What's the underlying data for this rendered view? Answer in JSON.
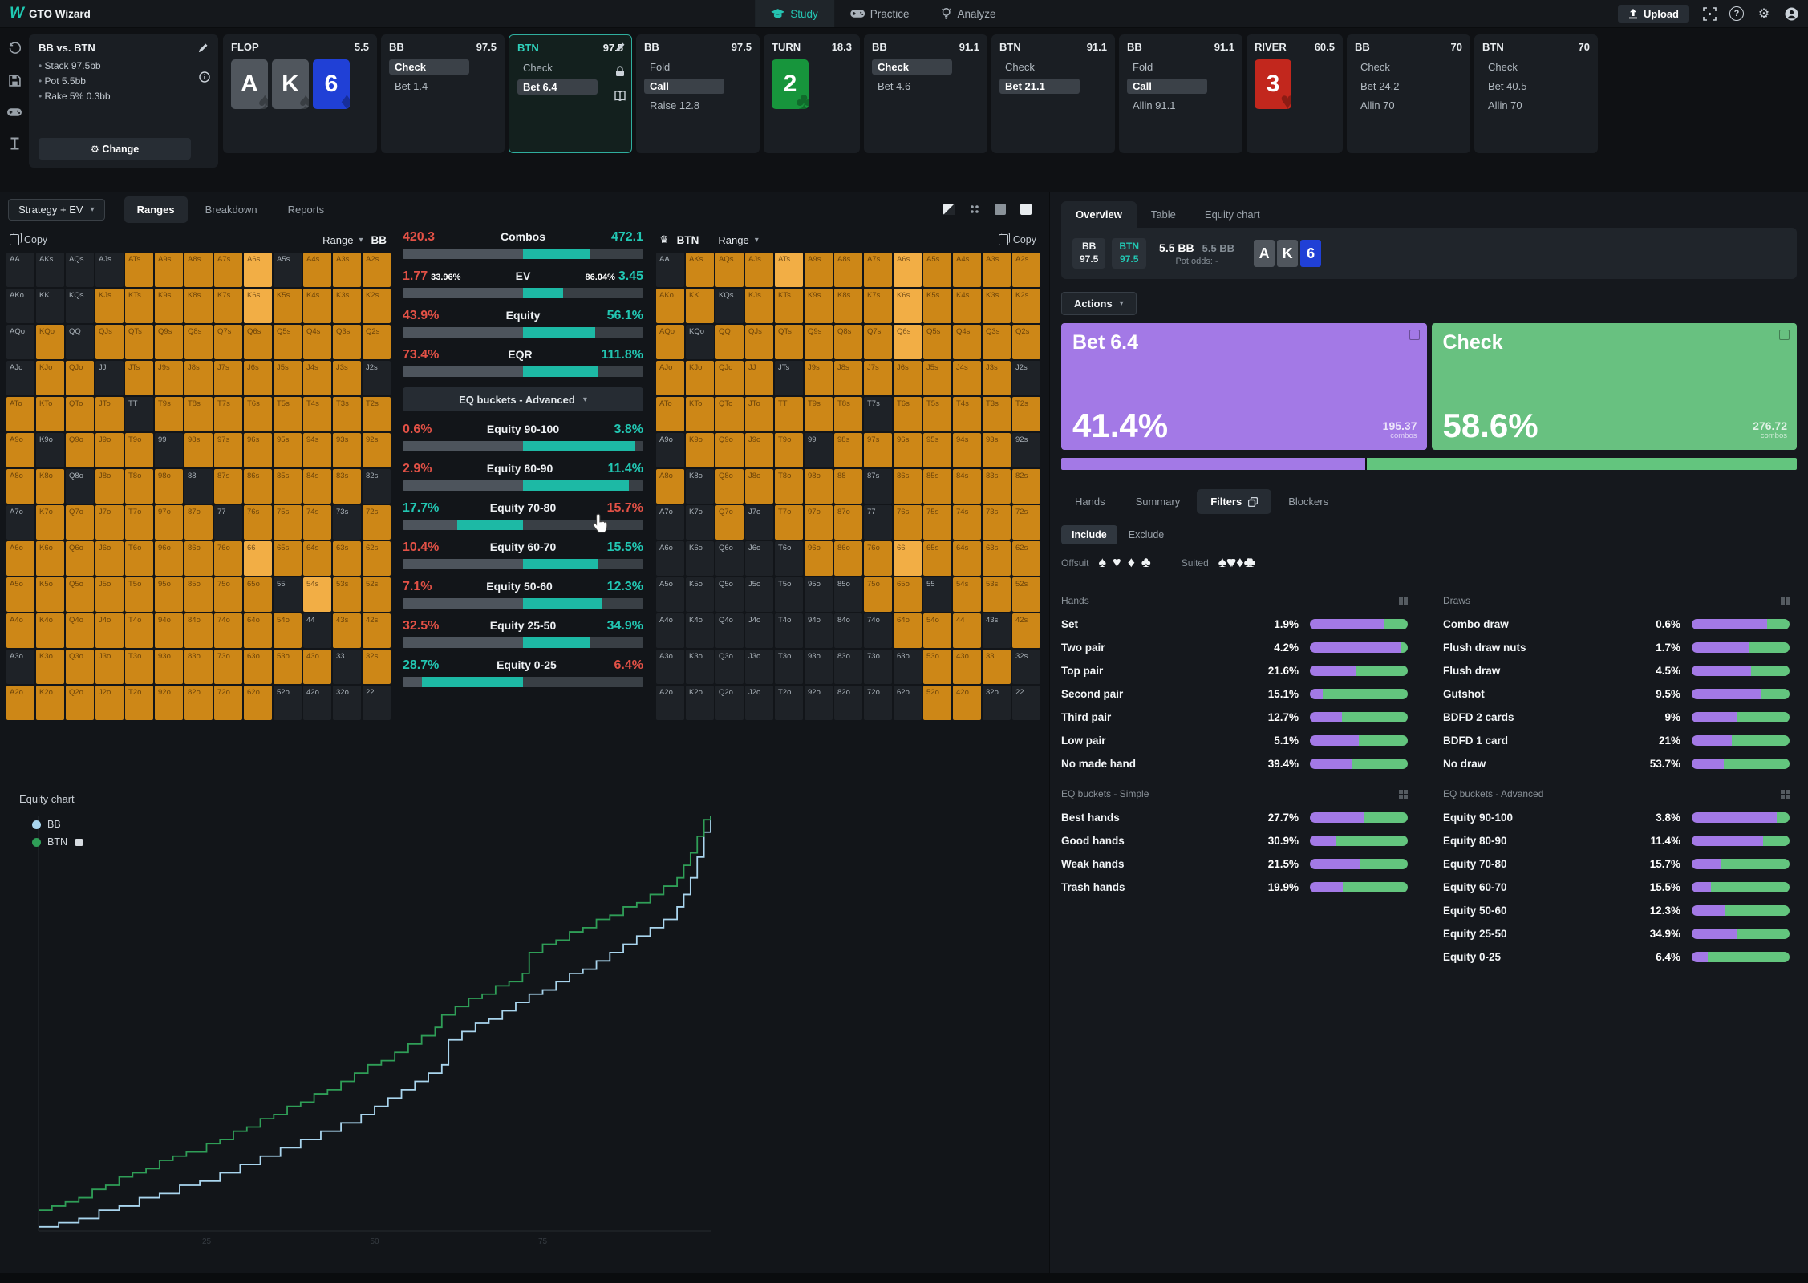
{
  "topbar": {
    "logo": "W",
    "title": "GTO Wizard",
    "nav": [
      {
        "label": "Study",
        "icon": "study-icon",
        "active": true
      },
      {
        "label": "Practice",
        "icon": "practice-icon",
        "active": false
      },
      {
        "label": "Analyze",
        "icon": "analyze-icon",
        "active": false
      }
    ],
    "upload": "Upload",
    "right_icons": [
      "scan-icon",
      "help-icon",
      "gear-icon",
      "account-icon"
    ]
  },
  "rail_icons": [
    "history-icon",
    "save-icon",
    "practice-icon",
    "text-tool-icon"
  ],
  "tree": {
    "config": {
      "title": "BB vs. BTN",
      "lines": [
        "Stack 97.5bb",
        "Pot 5.5bb",
        "Rake 5% 0.3bb"
      ],
      "change_label": "Change"
    },
    "nodes": [
      {
        "kind": "street",
        "name": "FLOP",
        "value": "5.5",
        "cards": [
          [
            "A",
            "spade"
          ],
          [
            "K",
            "spade"
          ],
          [
            "6",
            "diamond"
          ]
        ]
      },
      {
        "kind": "action",
        "name": "BB",
        "value": "97.5",
        "acts": [
          [
            "Check",
            1
          ],
          [
            "Bet 1.4",
            0
          ]
        ]
      },
      {
        "kind": "action",
        "name": "BTN",
        "value": "97.5",
        "selected": true,
        "acts": [
          [
            "Check",
            0
          ],
          [
            "Bet 6.4",
            1
          ]
        ]
      },
      {
        "kind": "action",
        "name": "BB",
        "value": "97.5",
        "acts": [
          [
            "Fold",
            0
          ],
          [
            "Call",
            1
          ],
          [
            "Raise 12.8",
            0
          ]
        ]
      },
      {
        "kind": "street",
        "name": "TURN",
        "value": "18.3",
        "cards": [
          [
            "2",
            "club"
          ]
        ]
      },
      {
        "kind": "action",
        "name": "BB",
        "value": "91.1",
        "acts": [
          [
            "Check",
            1
          ],
          [
            "Bet 4.6",
            0
          ]
        ]
      },
      {
        "kind": "action",
        "name": "BTN",
        "value": "91.1",
        "acts": [
          [
            "Check",
            0
          ],
          [
            "Bet 21.1",
            1
          ]
        ]
      },
      {
        "kind": "action",
        "name": "BB",
        "value": "91.1",
        "acts": [
          [
            "Fold",
            0
          ],
          [
            "Call",
            1
          ],
          [
            "Allin 91.1",
            0
          ]
        ]
      },
      {
        "kind": "street",
        "name": "RIVER",
        "value": "60.5",
        "cards": [
          [
            "3",
            "heart"
          ]
        ]
      },
      {
        "kind": "action",
        "name": "BB",
        "value": "70",
        "acts": [
          [
            "Check",
            0
          ],
          [
            "Bet 24.2",
            0
          ],
          [
            "Allin 70",
            0
          ]
        ]
      },
      {
        "kind": "action",
        "name": "BTN",
        "value": "70",
        "acts": [
          [
            "Check",
            0
          ],
          [
            "Bet 40.5",
            0
          ],
          [
            "Allin 70",
            0
          ]
        ]
      }
    ]
  },
  "left_tabs": {
    "selector": "Strategy + EV",
    "tabs": [
      {
        "label": "Ranges",
        "active": true
      },
      {
        "label": "Breakdown",
        "active": false
      },
      {
        "label": "Reports",
        "active": false
      }
    ],
    "view_icons": [
      "view-split-icon",
      "view-grid-icon",
      "view-compact-icon",
      "view-full-icon"
    ]
  },
  "ranks": [
    "A",
    "K",
    "Q",
    "J",
    "T",
    "9",
    "8",
    "7",
    "6",
    "5",
    "4",
    "3",
    "2"
  ],
  "matrices": {
    "bb": {
      "copy_label": "Copy",
      "range_label": "Range",
      "player": "BB",
      "cells": [
        "ddddoooohdooo",
        "dddooooohoooo",
        "dodoooooooooo",
        "doodooooooood",
        "oooodoooooooo",
        "odooodooooooo",
        "oodooodoooood",
        "doooooodooodo",
        "oooooooohoooo",
        "ooooooooodhoo",
        "oooooooooodoo",
        "doooooooooodo",
        "ooooooooodddd"
      ]
    },
    "btn": {
      "copy_label": "Copy",
      "range_label": "Range",
      "player": "BTN",
      "cells": [
        "dooohooohoooo",
        "oodooooohoooo",
        "odoooooohoooo",
        "oooodoooooood",
        "ooooooodooooo",
        "doooodooooood",
        "odooooodooooo",
        "ddodooodooooo",
        "dddddooohoooo",
        "dddddddoodooo",
        "ddddddddooodo",
        "dddddddddoood",
        "dddddddddoodd"
      ]
    }
  },
  "stats": {
    "rows": [
      {
        "left": "420.3",
        "label": "Combos",
        "right": "472.1",
        "lc": "red",
        "rc": "teal",
        "side": "right",
        "pct": 56
      },
      {
        "left": "1.77",
        "left_sub": "33.96%",
        "label": "EV",
        "right_sub": "86.04%",
        "right": "3.45",
        "lc": "red",
        "rc": "teal",
        "side": "right",
        "pct": 33
      },
      {
        "left": "43.9%",
        "label": "Equity",
        "right": "56.1%",
        "lc": "red",
        "rc": "teal",
        "side": "right",
        "pct": 60
      },
      {
        "left": "73.4%",
        "label": "EQR",
        "right": "111.8%",
        "lc": "red",
        "rc": "teal",
        "side": "right",
        "pct": 62
      }
    ],
    "bucket_dropdown": "EQ buckets - Advanced",
    "bucket_rows": [
      {
        "left": "0.6%",
        "label": "Equity 90-100",
        "right": "3.8%",
        "lc": "red",
        "rc": "teal",
        "side": "right",
        "pct": 93
      },
      {
        "left": "2.9%",
        "label": "Equity 80-90",
        "right": "11.4%",
        "lc": "red",
        "rc": "teal",
        "side": "right",
        "pct": 88
      },
      {
        "left": "17.7%",
        "label": "Equity 70-80",
        "right": "15.7%",
        "lc": "teal",
        "rc": "red",
        "side": "left",
        "pct": 55
      },
      {
        "left": "10.4%",
        "label": "Equity 60-70",
        "right": "15.5%",
        "lc": "red",
        "rc": "teal",
        "side": "right",
        "pct": 62
      },
      {
        "left": "7.1%",
        "label": "Equity 50-60",
        "right": "12.3%",
        "lc": "red",
        "rc": "teal",
        "side": "right",
        "pct": 66
      },
      {
        "left": "32.5%",
        "label": "Equity 25-50",
        "right": "34.9%",
        "lc": "red",
        "rc": "teal",
        "side": "right",
        "pct": 55
      },
      {
        "left": "28.7%",
        "label": "Equity 0-25",
        "right": "6.4%",
        "lc": "teal",
        "rc": "red",
        "side": "left",
        "pct": 84
      }
    ]
  },
  "equity_chart": {
    "title": "Equity chart",
    "legend": [
      {
        "label": "BB",
        "color": "#a9d5ee"
      },
      {
        "label": "BTN",
        "color": "#2f9e57"
      }
    ],
    "x_ticks": [
      "25",
      "50",
      "75"
    ],
    "chart_data": {
      "type": "line",
      "title": "Equity chart",
      "xlim": [
        0,
        100
      ],
      "ylim": [
        0,
        100
      ],
      "grid": false,
      "legend_position": "top-left",
      "series": [
        {
          "name": "BTN",
          "color": "#2f9e57",
          "points": [
            [
              0,
              5
            ],
            [
              2,
              6
            ],
            [
              4,
              7
            ],
            [
              6,
              8
            ],
            [
              8,
              10
            ],
            [
              10,
              11
            ],
            [
              12,
              13
            ],
            [
              14,
              14
            ],
            [
              16,
              15
            ],
            [
              18,
              17
            ],
            [
              20,
              18
            ],
            [
              22,
              19
            ],
            [
              25,
              21
            ],
            [
              27,
              22
            ],
            [
              29,
              24
            ],
            [
              31,
              25
            ],
            [
              33,
              27
            ],
            [
              35,
              28
            ],
            [
              37,
              30
            ],
            [
              39,
              31
            ],
            [
              41,
              33
            ],
            [
              43,
              34
            ],
            [
              45,
              36
            ],
            [
              47,
              38
            ],
            [
              49,
              40
            ],
            [
              51,
              41
            ],
            [
              53,
              43
            ],
            [
              55,
              45
            ],
            [
              57,
              47
            ],
            [
              59,
              49
            ],
            [
              60,
              52
            ],
            [
              62,
              54
            ],
            [
              64,
              56
            ],
            [
              66,
              57
            ],
            [
              68,
              59
            ],
            [
              70,
              60
            ],
            [
              72,
              62
            ],
            [
              73,
              67
            ],
            [
              75,
              69
            ],
            [
              77,
              70
            ],
            [
              79,
              72
            ],
            [
              81,
              73
            ],
            [
              83,
              75
            ],
            [
              85,
              76
            ],
            [
              87,
              78
            ],
            [
              89,
              79
            ],
            [
              91,
              81
            ],
            [
              93,
              83
            ],
            [
              95,
              85
            ],
            [
              96,
              88
            ],
            [
              97,
              91
            ],
            [
              98,
              95
            ],
            [
              99,
              99
            ],
            [
              100,
              100
            ]
          ]
        },
        {
          "name": "BB",
          "color": "#a9d5ee",
          "points": [
            [
              0,
              1
            ],
            [
              3,
              2
            ],
            [
              6,
              3
            ],
            [
              9,
              5
            ],
            [
              12,
              6
            ],
            [
              15,
              8
            ],
            [
              18,
              9
            ],
            [
              21,
              11
            ],
            [
              24,
              12
            ],
            [
              27,
              14
            ],
            [
              30,
              16
            ],
            [
              33,
              18
            ],
            [
              36,
              20
            ],
            [
              39,
              22
            ],
            [
              42,
              24
            ],
            [
              45,
              26
            ],
            [
              48,
              28
            ],
            [
              50,
              30
            ],
            [
              52,
              32
            ],
            [
              54,
              34
            ],
            [
              56,
              36
            ],
            [
              58,
              38
            ],
            [
              60,
              40
            ],
            [
              61,
              46
            ],
            [
              63,
              48
            ],
            [
              65,
              50
            ],
            [
              67,
              51
            ],
            [
              69,
              53
            ],
            [
              71,
              55
            ],
            [
              73,
              57
            ],
            [
              75,
              58
            ],
            [
              77,
              60
            ],
            [
              79,
              62
            ],
            [
              81,
              63
            ],
            [
              83,
              65
            ],
            [
              85,
              67
            ],
            [
              87,
              69
            ],
            [
              89,
              71
            ],
            [
              91,
              73
            ],
            [
              93,
              75
            ],
            [
              95,
              78
            ],
            [
              96,
              81
            ],
            [
              97,
              85
            ],
            [
              98,
              90
            ],
            [
              99,
              96
            ],
            [
              100,
              100
            ]
          ]
        }
      ]
    }
  },
  "right": {
    "tabs": [
      {
        "label": "Overview",
        "active": true
      },
      {
        "label": "Table",
        "active": false
      },
      {
        "label": "Equity chart",
        "active": false
      }
    ],
    "players": [
      {
        "name": "BB",
        "stack": "97.5",
        "teal": false
      },
      {
        "name": "BTN",
        "stack": "97.5",
        "teal": true
      }
    ],
    "pot_bold": "5.5 BB",
    "pot_gray": "5.5 BB",
    "pot_odds_label": "Pot odds:",
    "pot_odds_value": "-",
    "board": [
      [
        "A",
        "spade"
      ],
      [
        "K",
        "spade"
      ],
      [
        "6",
        "diamond"
      ]
    ],
    "actions_label": "Actions",
    "action_cards": [
      {
        "label": "Bet 6.4",
        "pct": "41.4%",
        "combos": "195.37",
        "combos_label": "combos",
        "color": "#a379e6"
      },
      {
        "label": "Check",
        "pct": "58.6%",
        "combos": "276.72",
        "combos_label": "combos",
        "color": "#68c180"
      }
    ],
    "split": [
      41.4,
      58.6
    ],
    "subtabs": [
      {
        "label": "Hands",
        "active": false
      },
      {
        "label": "Summary",
        "active": false
      },
      {
        "label": "Filters",
        "active": true,
        "icon": "layers-icon"
      },
      {
        "label": "Blockers",
        "active": false
      }
    ],
    "include": "Include",
    "exclude": "Exclude",
    "offsuit_label": "Offsuit",
    "suited_label": "Suited",
    "suits": [
      "spade",
      "heart",
      "diamond",
      "club"
    ],
    "sections": {
      "hands": {
        "title": "Hands",
        "rows": [
          [
            "Set",
            "1.9%",
            75
          ],
          [
            "Two pair",
            "4.2%",
            93
          ],
          [
            "Top pair",
            "21.6%",
            47
          ],
          [
            "Second pair",
            "15.1%",
            13
          ],
          [
            "Third pair",
            "12.7%",
            33
          ],
          [
            "Low pair",
            "5.1%",
            50
          ],
          [
            "No made hand",
            "39.4%",
            43
          ]
        ]
      },
      "draws": {
        "title": "Draws",
        "rows": [
          [
            "Combo draw",
            "0.6%",
            77
          ],
          [
            "Flush draw nuts",
            "1.7%",
            58
          ],
          [
            "Flush draw",
            "4.5%",
            61
          ],
          [
            "Gutshot",
            "9.5%",
            71
          ],
          [
            "BDFD 2 cards",
            "9%",
            46
          ],
          [
            "BDFD 1 card",
            "21%",
            41
          ],
          [
            "No draw",
            "53.7%",
            33
          ]
        ]
      },
      "eq_simple": {
        "title": "EQ buckets - Simple",
        "rows": [
          [
            "Best hands",
            "27.7%",
            56
          ],
          [
            "Good hands",
            "30.9%",
            27
          ],
          [
            "Weak hands",
            "21.5%",
            51
          ],
          [
            "Trash hands",
            "19.9%",
            34
          ]
        ]
      },
      "eq_advanced": {
        "title": "EQ buckets - Advanced",
        "rows": [
          [
            "Equity 90-100",
            "3.8%",
            87
          ],
          [
            "Equity 80-90",
            "11.4%",
            73
          ],
          [
            "Equity 70-80",
            "15.7%",
            30
          ],
          [
            "Equity 60-70",
            "15.5%",
            20
          ],
          [
            "Equity 50-60",
            "12.3%",
            34
          ],
          [
            "Equity 25-50",
            "34.9%",
            47
          ],
          [
            "Equity 0-25",
            "6.4%",
            16
          ]
        ]
      }
    }
  }
}
